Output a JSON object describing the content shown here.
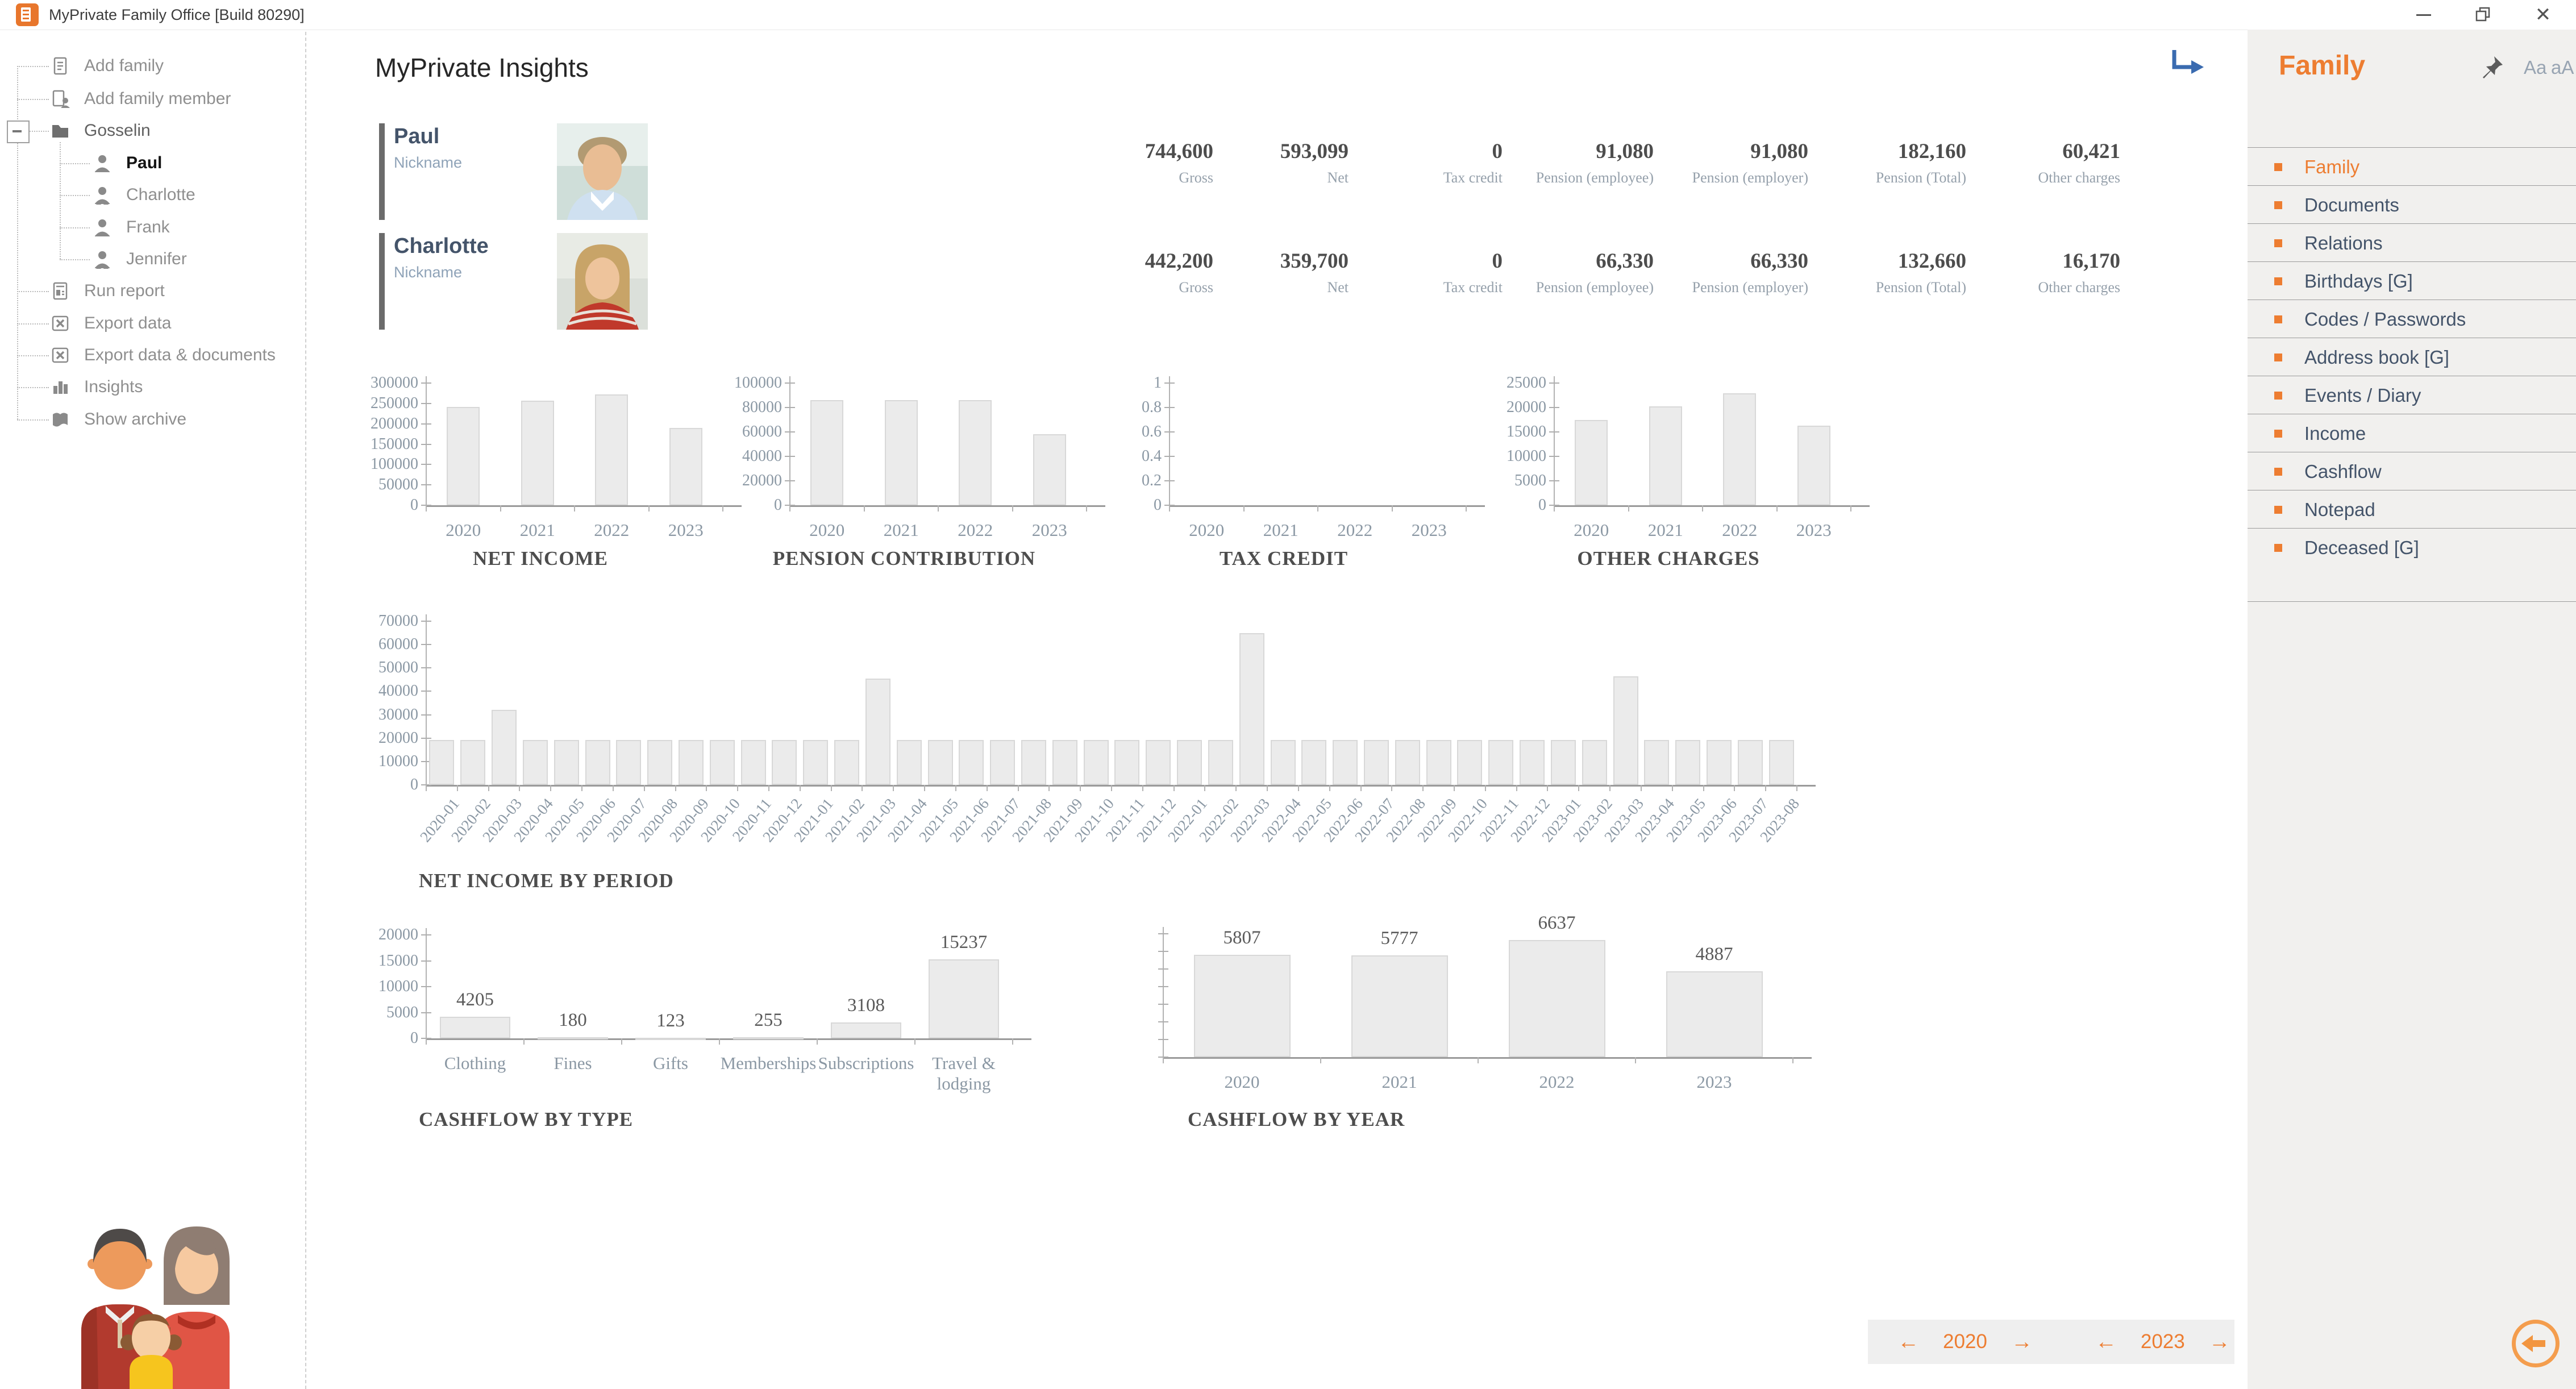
{
  "window": {
    "title": "MyPrivate Family Office [Build 80290]"
  },
  "icons": {
    "app": "orange-square-document",
    "titlebar": [
      "minimize-icon",
      "restore-icon",
      "close-icon"
    ],
    "redirect": "blue-corner-arrow",
    "pin": "pushpin",
    "filter": "funnel",
    "back": "left-arrow-circle"
  },
  "tree": {
    "items": [
      {
        "label": "Add family",
        "icon": "document"
      },
      {
        "label": "Add family member",
        "icon": "document-person"
      },
      {
        "label": "Gosselin",
        "icon": "folder",
        "expanded": true
      },
      {
        "label": "Paul",
        "icon": "person-male",
        "selected": true
      },
      {
        "label": "Charlotte",
        "icon": "person-female"
      },
      {
        "label": "Frank",
        "icon": "person-male"
      },
      {
        "label": "Jennifer",
        "icon": "person-female"
      },
      {
        "label": "Run report",
        "icon": "report"
      },
      {
        "label": "Export data",
        "icon": "excel"
      },
      {
        "label": "Export data & documents",
        "icon": "excel"
      },
      {
        "label": "Insights",
        "icon": "bar-chart"
      },
      {
        "label": "Show archive",
        "icon": "book"
      }
    ]
  },
  "main": {
    "heading": "MyPrivate Insights"
  },
  "people": [
    {
      "name": "Paul",
      "nickname_label": "Nickname",
      "values": [
        {
          "value": "744,600",
          "label": "Gross"
        },
        {
          "value": "593,099",
          "label": "Net"
        },
        {
          "value": "0",
          "label": "Tax credit"
        },
        {
          "value": "91,080",
          "label": "Pension (employee)"
        },
        {
          "value": "91,080",
          "label": "Pension (employer)"
        },
        {
          "value": "182,160",
          "label": "Pension (Total)"
        },
        {
          "value": "60,421",
          "label": "Other charges"
        }
      ]
    },
    {
      "name": "Charlotte",
      "nickname_label": "Nickname",
      "values": [
        {
          "value": "442,200",
          "label": "Gross"
        },
        {
          "value": "359,700",
          "label": "Net"
        },
        {
          "value": "0",
          "label": "Tax credit"
        },
        {
          "value": "66,330",
          "label": "Pension (employee)"
        },
        {
          "value": "66,330",
          "label": "Pension (employer)"
        },
        {
          "value": "132,660",
          "label": "Pension (Total)"
        },
        {
          "value": "16,170",
          "label": "Other charges"
        }
      ]
    }
  ],
  "chart_data": [
    {
      "type": "bar",
      "title": "NET INCOME",
      "categories": [
        "2020",
        "2021",
        "2022",
        "2023"
      ],
      "values": [
        242000,
        257000,
        272000,
        190000
      ],
      "ylim": [
        0,
        300000
      ],
      "ytick_step": 50000,
      "grid": false,
      "legend": false
    },
    {
      "type": "bar",
      "title": "PENSION CONTRIBUTION",
      "categories": [
        "2020",
        "2021",
        "2022",
        "2023"
      ],
      "values": [
        86000,
        86000,
        86000,
        58000
      ],
      "ylim": [
        0,
        100000
      ],
      "ytick_step": 20000,
      "grid": false,
      "legend": false
    },
    {
      "type": "bar",
      "title": "TAX CREDIT",
      "categories": [
        "2020",
        "2021",
        "2022",
        "2023"
      ],
      "values": [
        0,
        0,
        0,
        0
      ],
      "ylim": [
        0,
        1
      ],
      "ytick_step": 0.2,
      "grid": false,
      "legend": false
    },
    {
      "type": "bar",
      "title": "OTHER CHARGES",
      "categories": [
        "2020",
        "2021",
        "2022",
        "2023"
      ],
      "values": [
        17500,
        20200,
        22900,
        16300
      ],
      "ylim": [
        0,
        25000
      ],
      "ytick_step": 5000,
      "grid": false,
      "legend": false
    },
    {
      "type": "bar",
      "title": "NET INCOME BY PERIOD",
      "categories": [
        "2020-01",
        "2020-02",
        "2020-03",
        "2020-04",
        "2020-05",
        "2020-06",
        "2020-07",
        "2020-08",
        "2020-09",
        "2020-10",
        "2020-11",
        "2020-12",
        "2021-01",
        "2021-02",
        "2021-03",
        "2021-04",
        "2021-05",
        "2021-06",
        "2021-07",
        "2021-08",
        "2021-09",
        "2021-10",
        "2021-11",
        "2021-12",
        "2022-01",
        "2022-02",
        "2022-03",
        "2022-04",
        "2022-05",
        "2022-06",
        "2022-07",
        "2022-08",
        "2022-09",
        "2022-10",
        "2022-11",
        "2022-12",
        "2023-01",
        "2023-02",
        "2023-03",
        "2023-04",
        "2023-05",
        "2023-06",
        "2023-07",
        "2023-08"
      ],
      "values": [
        19300,
        19300,
        32000,
        19300,
        19300,
        19300,
        19300,
        19300,
        19300,
        19300,
        19300,
        19300,
        19300,
        19300,
        45500,
        19300,
        19300,
        19300,
        19300,
        19300,
        19300,
        19300,
        19300,
        19300,
        19300,
        19300,
        65000,
        19300,
        19300,
        19300,
        19300,
        19300,
        19300,
        19300,
        19300,
        19300,
        19300,
        19300,
        46500,
        19300,
        19300,
        19300,
        19300,
        19300
      ],
      "ylim": [
        0,
        70000
      ],
      "ytick_step": 10000,
      "grid": false,
      "legend": false,
      "xlabel_rotated": true
    },
    {
      "type": "bar",
      "title": "CASHFLOW BY TYPE",
      "categories": [
        "Clothing",
        "Fines",
        "Gifts",
        "Memberships",
        "Subscriptions",
        "Travel & lodging"
      ],
      "values": [
        4205,
        180,
        123,
        255,
        3108,
        15237
      ],
      "ylim": [
        0,
        20000
      ],
      "ytick_step": 5000,
      "data_labels": true,
      "grid": false,
      "legend": false
    },
    {
      "type": "bar",
      "title": "CASHFLOW BY YEAR",
      "categories": [
        "2020",
        "2021",
        "2022",
        "2023"
      ],
      "values": [
        5807,
        5777,
        6637,
        4887
      ],
      "ylim": [
        0,
        7000
      ],
      "ytick_step": 1000,
      "data_labels": true,
      "ytick_labels_hidden": true,
      "grid": false,
      "legend": false
    }
  ],
  "right_panel": {
    "title": "Family",
    "font_small": "Aa",
    "font_large": "aA",
    "items": [
      {
        "label": "Family",
        "selected": true
      },
      {
        "label": "Documents"
      },
      {
        "label": "Relations"
      },
      {
        "label": "Birthdays [G]"
      },
      {
        "label": "Codes / Passwords"
      },
      {
        "label": "Address book [G]"
      },
      {
        "label": "Events / Diary"
      },
      {
        "label": "Income"
      },
      {
        "label": "Cashflow"
      },
      {
        "label": "Notepad"
      },
      {
        "label": "Deceased [G]"
      }
    ]
  },
  "bottom_nav": {
    "year_left": "2020",
    "year_right": "2023"
  },
  "colors": {
    "accent_orange": "#ED7D31",
    "redirect_blue": "#3A6BB0",
    "bar_fill": "#EBEBEB",
    "bar_border": "#D8D8D8",
    "panel_bg": "#F1F0EE",
    "text_dark": "#44546A",
    "text_gray": "#8F8F8F"
  }
}
